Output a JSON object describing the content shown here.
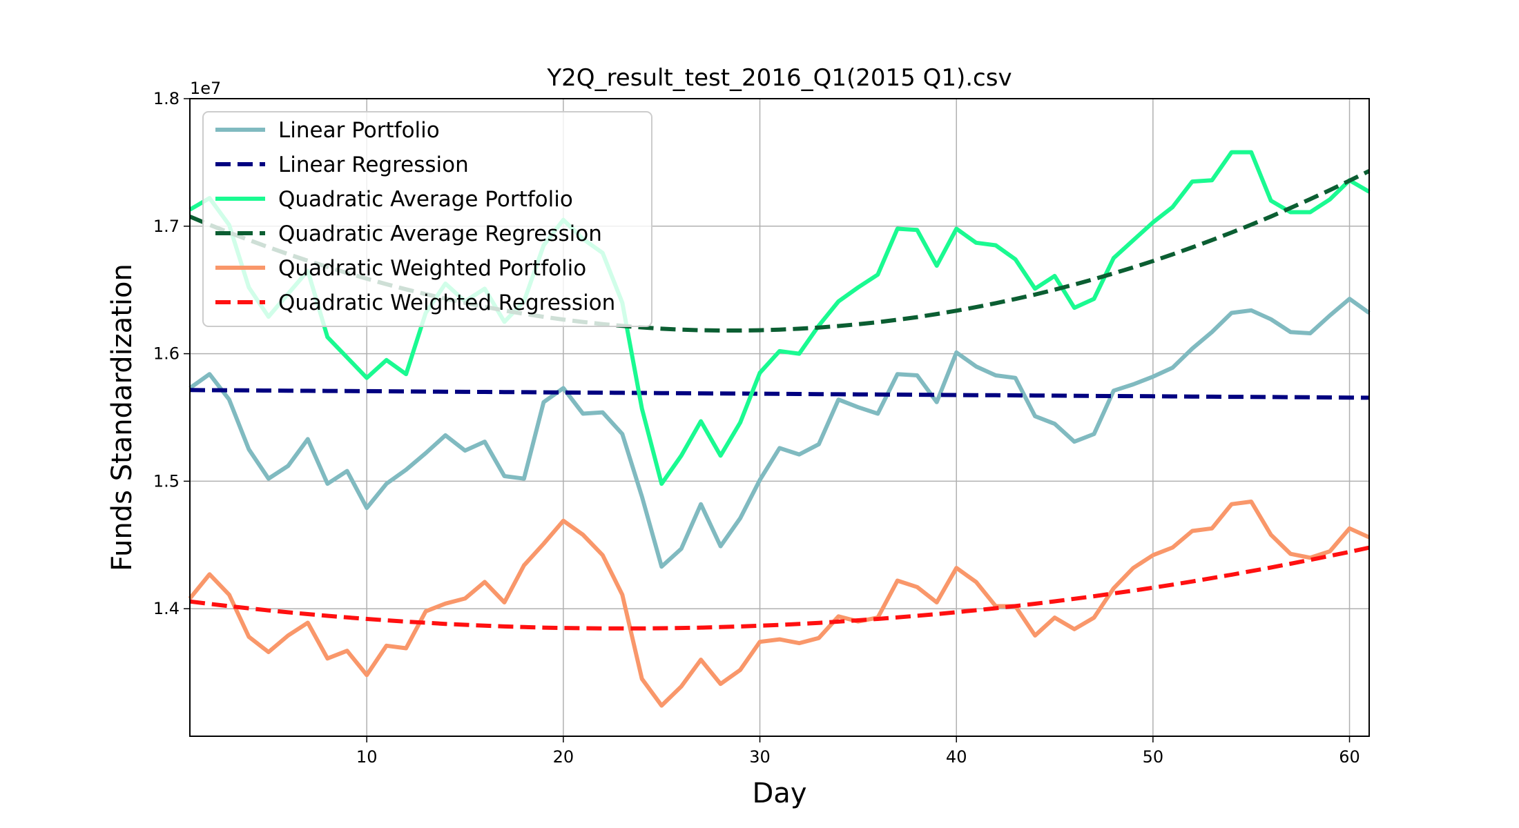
{
  "chart_data": {
    "type": "line",
    "title": "Y2Q_result_test_2016_Q1(2015 Q1).csv",
    "xlabel": "Day",
    "ylabel": "Funds Standardization",
    "y_offset_label": "1e7",
    "xlim": [
      1,
      61
    ],
    "ylim": [
      1.3,
      1.8
    ],
    "x_ticks": [
      10,
      20,
      30,
      40,
      50,
      60
    ],
    "x_tick_labels": [
      "10",
      "20",
      "30",
      "40",
      "50",
      "60"
    ],
    "y_ticks": [
      1.4,
      1.5,
      1.6,
      1.7,
      1.8
    ],
    "y_tick_labels": [
      "1.4",
      "1.5",
      "1.6",
      "1.7",
      "1.8"
    ],
    "grid": true,
    "legend_position": "top-left",
    "x": [
      1,
      2,
      3,
      4,
      5,
      6,
      7,
      8,
      9,
      10,
      11,
      12,
      13,
      14,
      15,
      16,
      17,
      18,
      19,
      20,
      21,
      22,
      23,
      24,
      25,
      26,
      27,
      28,
      29,
      30,
      31,
      32,
      33,
      34,
      35,
      36,
      37,
      38,
      39,
      40,
      41,
      42,
      43,
      44,
      45,
      46,
      47,
      48,
      49,
      50,
      51,
      52,
      53,
      54,
      55,
      56,
      57,
      58,
      59,
      60,
      61
    ],
    "series": [
      {
        "name": "Linear Portfolio",
        "color": "#80BAC0",
        "style": "solid",
        "values": [
          1.573,
          1.584,
          1.564,
          1.525,
          1.502,
          1.512,
          1.533,
          1.498,
          1.508,
          1.479,
          1.498,
          1.509,
          1.522,
          1.536,
          1.524,
          1.531,
          1.504,
          1.502,
          1.562,
          1.573,
          1.553,
          1.554,
          1.537,
          1.488,
          1.433,
          1.447,
          1.482,
          1.449,
          1.471,
          1.501,
          1.526,
          1.521,
          1.529,
          1.564,
          1.558,
          1.553,
          1.584,
          1.583,
          1.562,
          1.601,
          1.59,
          1.583,
          1.581,
          1.551,
          1.545,
          1.531,
          1.537,
          1.571,
          1.576,
          1.582,
          1.589,
          1.604,
          1.617,
          1.632,
          1.634,
          1.627,
          1.617,
          1.616,
          1.63,
          1.643,
          1.632
        ]
      },
      {
        "name": "Linear Regression",
        "color": "#000080",
        "style": "dashed",
        "values": [
          1.5715,
          1.5714,
          1.5713,
          1.5712,
          1.5711,
          1.571,
          1.5709,
          1.5708,
          1.5707,
          1.5706,
          1.5705,
          1.5704,
          1.5703,
          1.5702,
          1.5701,
          1.57,
          1.5699,
          1.5698,
          1.5697,
          1.5696,
          1.5695,
          1.5694,
          1.5693,
          1.5692,
          1.5691,
          1.569,
          1.5689,
          1.5688,
          1.5687,
          1.5686,
          1.5685,
          1.5684,
          1.5683,
          1.5682,
          1.5681,
          1.568,
          1.5679,
          1.5678,
          1.5677,
          1.5676,
          1.5675,
          1.5674,
          1.5673,
          1.5672,
          1.5671,
          1.567,
          1.5669,
          1.5668,
          1.5667,
          1.5666,
          1.5665,
          1.5664,
          1.5663,
          1.5662,
          1.5661,
          1.566,
          1.5659,
          1.5658,
          1.5657,
          1.5656,
          1.5655
        ]
      },
      {
        "name": "Quadratic Average Portfolio",
        "color": "#1AFA91",
        "style": "solid",
        "values": [
          1.713,
          1.722,
          1.701,
          1.652,
          1.629,
          1.647,
          1.665,
          1.613,
          1.597,
          1.581,
          1.595,
          1.584,
          1.632,
          1.655,
          1.641,
          1.651,
          1.625,
          1.641,
          1.685,
          1.705,
          1.69,
          1.679,
          1.64,
          1.557,
          1.498,
          1.52,
          1.547,
          1.52,
          1.546,
          1.585,
          1.602,
          1.6,
          1.622,
          1.641,
          1.652,
          1.662,
          1.698,
          1.697,
          1.669,
          1.698,
          1.687,
          1.685,
          1.674,
          1.651,
          1.661,
          1.636,
          1.643,
          1.675,
          1.689,
          1.703,
          1.715,
          1.735,
          1.736,
          1.758,
          1.758,
          1.72,
          1.711,
          1.711,
          1.721,
          1.736,
          1.727
        ]
      },
      {
        "name": "Quadratic Average Regression",
        "color": "#0B5E32",
        "style": "dashed",
        "values": [
          1.7075,
          1.7011,
          1.695,
          1.6892,
          1.6835,
          1.6781,
          1.6729,
          1.668,
          1.6633,
          1.6588,
          1.6545,
          1.6505,
          1.6467,
          1.6432,
          1.6399,
          1.6368,
          1.6339,
          1.6313,
          1.6289,
          1.6268,
          1.6249,
          1.6232,
          1.6218,
          1.6206,
          1.6196,
          1.6189,
          1.6184,
          1.6182,
          1.6182,
          1.6184,
          1.6189,
          1.6196,
          1.6205,
          1.6217,
          1.6231,
          1.6247,
          1.6266,
          1.6287,
          1.6311,
          1.6337,
          1.6365,
          1.6396,
          1.6429,
          1.6464,
          1.6502,
          1.6542,
          1.6585,
          1.663,
          1.6677,
          1.6727,
          1.6779,
          1.6834,
          1.6891,
          1.695,
          1.7012,
          1.7076,
          1.7143,
          1.7212,
          1.7283,
          1.7357,
          1.7433
        ]
      },
      {
        "name": "Quadratic Weighted Portfolio",
        "color": "#F9976A",
        "style": "solid",
        "values": [
          1.408,
          1.427,
          1.411,
          1.378,
          1.366,
          1.379,
          1.389,
          1.361,
          1.367,
          1.348,
          1.371,
          1.369,
          1.398,
          1.404,
          1.408,
          1.421,
          1.405,
          1.434,
          1.451,
          1.469,
          1.458,
          1.442,
          1.411,
          1.345,
          1.324,
          1.339,
          1.36,
          1.341,
          1.352,
          1.374,
          1.376,
          1.373,
          1.377,
          1.394,
          1.39,
          1.393,
          1.422,
          1.417,
          1.405,
          1.432,
          1.421,
          1.402,
          1.402,
          1.379,
          1.393,
          1.384,
          1.393,
          1.416,
          1.432,
          1.442,
          1.448,
          1.461,
          1.463,
          1.482,
          1.484,
          1.458,
          1.443,
          1.44,
          1.445,
          1.463,
          1.456
        ]
      },
      {
        "name": "Quadratic Weighted Regression",
        "color": "#FF1010",
        "style": "dashed",
        "values": [
          1.4057,
          1.4038,
          1.402,
          1.4003,
          1.3987,
          1.3972,
          1.3958,
          1.3944,
          1.3932,
          1.392,
          1.3909,
          1.3899,
          1.389,
          1.3881,
          1.3874,
          1.3867,
          1.3861,
          1.3856,
          1.3852,
          1.3849,
          1.3847,
          1.3846,
          1.3845,
          1.3845,
          1.3847,
          1.3849,
          1.3852,
          1.3856,
          1.3861,
          1.3867,
          1.3873,
          1.3881,
          1.3889,
          1.3899,
          1.3909,
          1.392,
          1.3932,
          1.3945,
          1.3958,
          1.3973,
          1.3988,
          1.4004,
          1.4021,
          1.4039,
          1.4058,
          1.4078,
          1.4098,
          1.412,
          1.4142,
          1.4165,
          1.4189,
          1.4214,
          1.424,
          1.4267,
          1.4295,
          1.4323,
          1.4353,
          1.4383,
          1.4414,
          1.4446,
          1.4479
        ]
      }
    ]
  }
}
